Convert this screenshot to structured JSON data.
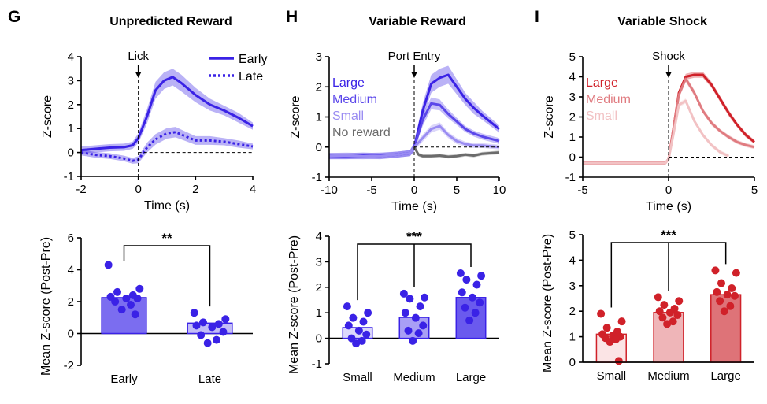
{
  "chart_data": [
    {
      "id": "G",
      "type": "line",
      "letter": "G",
      "title": "Unpredicted Reward",
      "xlabel": "Time (s)",
      "ylabel": "Z-score",
      "xlim": [
        -2,
        4
      ],
      "ylim": [
        -1,
        4
      ],
      "xticks": [
        -2,
        0,
        2,
        4
      ],
      "yticks": [
        -1,
        0,
        1,
        2,
        3,
        4
      ],
      "event": {
        "label": "Lick",
        "x": 0
      },
      "baseline": 0,
      "legend": {
        "position": "top-right",
        "style": "line"
      },
      "series": [
        {
          "name": "Early",
          "color": "#3a22e6",
          "dash": false,
          "x": [
            -2,
            -1.5,
            -1,
            -0.5,
            -0.2,
            0,
            0.3,
            0.6,
            0.9,
            1.2,
            1.5,
            2,
            2.5,
            3,
            3.5,
            4
          ],
          "y": [
            0.1,
            0.15,
            0.2,
            0.22,
            0.3,
            0.6,
            1.5,
            2.6,
            3.0,
            3.15,
            2.9,
            2.4,
            2.0,
            1.75,
            1.45,
            1.1
          ],
          "sem": [
            0.15,
            0.15,
            0.15,
            0.15,
            0.15,
            0.2,
            0.3,
            0.35,
            0.35,
            0.35,
            0.35,
            0.3,
            0.25,
            0.2,
            0.2,
            0.15
          ]
        },
        {
          "name": "Late",
          "color": "#3a22e6",
          "dash": true,
          "x": [
            -2,
            -1.5,
            -1,
            -0.5,
            -0.2,
            0,
            0.3,
            0.6,
            1,
            1.3,
            1.6,
            2,
            2.5,
            3,
            3.5,
            4
          ],
          "y": [
            0.0,
            -0.1,
            -0.15,
            -0.25,
            -0.35,
            -0.3,
            0.2,
            0.55,
            0.8,
            0.85,
            0.7,
            0.5,
            0.5,
            0.45,
            0.35,
            0.25
          ],
          "sem": [
            0.12,
            0.12,
            0.12,
            0.12,
            0.12,
            0.15,
            0.2,
            0.22,
            0.22,
            0.22,
            0.2,
            0.18,
            0.18,
            0.15,
            0.15,
            0.12
          ]
        }
      ]
    },
    {
      "id": "H",
      "type": "line",
      "letter": "H",
      "title": "Variable Reward",
      "xlabel": "Time (s)",
      "ylabel": "Z-score",
      "xlim": [
        -10,
        10
      ],
      "ylim": [
        -1,
        3
      ],
      "xticks": [
        -10,
        -5,
        0,
        5,
        10
      ],
      "yticks": [
        -1,
        0,
        1,
        2,
        3
      ],
      "event": {
        "label": "Port Entry",
        "x": 0
      },
      "baseline": 0,
      "legend": {
        "position": "top-left",
        "style": "text"
      },
      "series": [
        {
          "name": "Large",
          "color": "#3a22e6",
          "x": [
            -10,
            -8,
            -6,
            -4,
            -2,
            -0.5,
            0,
            1,
            2,
            3,
            4,
            5,
            6,
            7,
            8,
            10
          ],
          "y": [
            -0.3,
            -0.3,
            -0.28,
            -0.3,
            -0.25,
            -0.2,
            0.0,
            1.2,
            2.1,
            2.3,
            2.4,
            2.0,
            1.6,
            1.3,
            1.05,
            0.6
          ],
          "sem": [
            0.1,
            0.1,
            0.1,
            0.1,
            0.1,
            0.1,
            0.15,
            0.25,
            0.3,
            0.3,
            0.3,
            0.25,
            0.2,
            0.2,
            0.15,
            0.12
          ]
        },
        {
          "name": "Medium",
          "color": "#5a46ea",
          "x": [
            -10,
            -8,
            -6,
            -4,
            -2,
            -0.5,
            0,
            1,
            2,
            3,
            4,
            5,
            6,
            7,
            8,
            10
          ],
          "y": [
            -0.3,
            -0.3,
            -0.3,
            -0.28,
            -0.25,
            -0.2,
            0.0,
            0.9,
            1.45,
            1.4,
            1.1,
            0.85,
            0.6,
            0.45,
            0.35,
            0.2
          ],
          "sem": [
            0.1,
            0.1,
            0.1,
            0.1,
            0.1,
            0.1,
            0.12,
            0.2,
            0.2,
            0.18,
            0.15,
            0.12,
            0.1,
            0.1,
            0.1,
            0.1
          ]
        },
        {
          "name": "Small",
          "color": "#9a8cf2",
          "x": [
            -10,
            -8,
            -6,
            -4,
            -2,
            -0.5,
            0,
            1,
            2,
            3,
            4,
            5,
            6,
            7,
            8,
            10
          ],
          "y": [
            -0.3,
            -0.28,
            -0.3,
            -0.3,
            -0.25,
            -0.2,
            0.0,
            0.3,
            0.6,
            0.7,
            0.4,
            0.2,
            0.1,
            0.05,
            0.05,
            0.0
          ],
          "sem": [
            0.1,
            0.1,
            0.1,
            0.1,
            0.1,
            0.1,
            0.1,
            0.12,
            0.12,
            0.12,
            0.1,
            0.1,
            0.08,
            0.08,
            0.08,
            0.08
          ]
        },
        {
          "name": "No reward",
          "color": "#6b6b6b",
          "x": [
            0,
            0.5,
            1,
            2,
            3,
            4,
            5,
            6,
            7,
            8,
            9,
            10
          ],
          "y": [
            0.0,
            -0.25,
            -0.3,
            -0.3,
            -0.28,
            -0.32,
            -0.3,
            -0.25,
            -0.28,
            -0.22,
            -0.2,
            -0.18
          ],
          "sem": [
            0.05,
            0.06,
            0.06,
            0.06,
            0.06,
            0.06,
            0.06,
            0.06,
            0.06,
            0.06,
            0.06,
            0.06
          ]
        }
      ]
    },
    {
      "id": "I",
      "type": "line",
      "letter": "I",
      "title": "Variable Shock",
      "xlabel": "Time (s)",
      "ylabel": "Z-score",
      "xlim": [
        -5,
        5
      ],
      "ylim": [
        -1,
        5
      ],
      "xticks": [
        -5,
        0,
        5
      ],
      "yticks": [
        -1,
        0,
        1,
        2,
        3,
        4,
        5
      ],
      "event": {
        "label": "Shock",
        "x": 0
      },
      "baseline": 0,
      "legend": {
        "position": "top-left",
        "style": "text"
      },
      "series": [
        {
          "name": "Large",
          "color": "#d02129",
          "x": [
            -5,
            -4,
            -3,
            -2,
            -1,
            -0.2,
            0,
            0.3,
            0.6,
            1,
            1.5,
            2,
            2.5,
            3,
            3.5,
            4,
            4.5,
            5
          ],
          "y": [
            -0.3,
            -0.3,
            -0.3,
            -0.3,
            -0.3,
            -0.3,
            -0.1,
            1.5,
            3.2,
            4.0,
            4.1,
            4.1,
            3.6,
            2.9,
            2.2,
            1.6,
            1.1,
            0.75
          ],
          "sem": [
            0.08,
            0.08,
            0.08,
            0.08,
            0.08,
            0.08,
            0.1,
            0.15,
            0.15,
            0.15,
            0.15,
            0.15,
            0.15,
            0.15,
            0.15,
            0.12,
            0.12,
            0.1
          ]
        },
        {
          "name": "Medium",
          "color": "#e07b80",
          "x": [
            -5,
            -4,
            -3,
            -2,
            -1,
            -0.2,
            0,
            0.3,
            0.6,
            1,
            1.5,
            2,
            2.5,
            3,
            3.5,
            4,
            4.5,
            5
          ],
          "y": [
            -0.3,
            -0.3,
            -0.3,
            -0.3,
            -0.3,
            -0.3,
            -0.1,
            1.5,
            3.1,
            3.9,
            3.2,
            2.3,
            1.7,
            1.3,
            1.0,
            0.75,
            0.6,
            0.5
          ],
          "sem": [
            0.08,
            0.08,
            0.08,
            0.08,
            0.08,
            0.08,
            0.1,
            0.15,
            0.15,
            0.15,
            0.15,
            0.12,
            0.12,
            0.1,
            0.1,
            0.1,
            0.1,
            0.1
          ]
        },
        {
          "name": "Small",
          "color": "#f2c2c4",
          "x": [
            -5,
            -4,
            -3,
            -2,
            -1,
            -0.2,
            0,
            0.3,
            0.6,
            1,
            1.5,
            2,
            2.5,
            3,
            3.5
          ],
          "y": [
            -0.3,
            -0.3,
            -0.3,
            -0.3,
            -0.3,
            -0.3,
            -0.1,
            1.2,
            2.6,
            2.8,
            1.8,
            1.1,
            0.6,
            0.25,
            0.05
          ],
          "sem": [
            0.08,
            0.08,
            0.08,
            0.08,
            0.08,
            0.08,
            0.1,
            0.12,
            0.12,
            0.12,
            0.12,
            0.1,
            0.1,
            0.1,
            0.1
          ]
        }
      ]
    },
    {
      "id": "G2",
      "type": "bar",
      "ylabel": "Mean Z-score (Post-Pre)",
      "ylim": [
        -2,
        6
      ],
      "yticks": [
        -2,
        0,
        2,
        4,
        6
      ],
      "categories": [
        "Early",
        "Late"
      ],
      "values": [
        2.25,
        0.65
      ],
      "fill_colors": [
        "#7b6df0",
        "#c3bdf7"
      ],
      "edge_colors": [
        "#3a22e6",
        "#3a22e6"
      ],
      "point_color": "#3a22e6",
      "points": [
        [
          4.3,
          2.8,
          2.6,
          2.4,
          2.3,
          2.2,
          2.2,
          2.0,
          1.8,
          1.5,
          1.2
        ],
        [
          1.3,
          0.9,
          0.7,
          0.6,
          0.5,
          0.4,
          0.1,
          -0.1,
          -0.4,
          -0.6
        ]
      ],
      "significance": {
        "label": "**",
        "from": 0,
        "to": 1
      }
    },
    {
      "id": "H2",
      "type": "bar",
      "ylabel": "Mean Z-score (Post-Pre)",
      "ylim": [
        -1,
        4
      ],
      "yticks": [
        -1,
        0,
        1,
        2,
        3,
        4
      ],
      "categories": [
        "Small",
        "Medium",
        "Large"
      ],
      "values": [
        0.42,
        0.82,
        1.6
      ],
      "fill_colors": [
        "#dcd8fb",
        "#a99ff5",
        "#6a5aee"
      ],
      "edge_colors": [
        "#3a22e6",
        "#3a22e6",
        "#3a22e6"
      ],
      "point_color": "#3a22e6",
      "points": [
        [
          1.25,
          1.0,
          0.8,
          0.65,
          0.5,
          0.3,
          0.15,
          0.0,
          -0.1,
          -0.2
        ],
        [
          1.75,
          1.6,
          1.55,
          1.25,
          1.0,
          0.8,
          0.5,
          0.3,
          0.2,
          -0.1
        ],
        [
          2.55,
          2.45,
          2.3,
          2.1,
          1.8,
          1.6,
          1.4,
          1.2,
          1.0,
          0.7
        ]
      ],
      "significance": {
        "label": "***",
        "from": 0,
        "to": 2
      }
    },
    {
      "id": "I2",
      "type": "bar",
      "ylabel": "Mean Z-score (Post-Pre)",
      "ylim": [
        0,
        5
      ],
      "yticks": [
        0,
        1,
        2,
        3,
        4,
        5
      ],
      "categories": [
        "Small",
        "Medium",
        "Large"
      ],
      "values": [
        1.1,
        1.95,
        2.65
      ],
      "fill_colors": [
        "#fbe4e5",
        "#efb5b8",
        "#de7378"
      ],
      "edge_colors": [
        "#d02129",
        "#d02129",
        "#d02129"
      ],
      "point_color": "#d02129",
      "points": [
        [
          1.9,
          1.6,
          1.35,
          1.2,
          1.1,
          1.05,
          1.0,
          0.95,
          0.9,
          0.8,
          0.05
        ],
        [
          2.55,
          2.4,
          2.25,
          2.1,
          2.0,
          1.95,
          1.85,
          1.75,
          1.6,
          1.5
        ],
        [
          3.6,
          3.5,
          3.1,
          2.9,
          2.75,
          2.65,
          2.6,
          2.4,
          2.2,
          2.0
        ]
      ],
      "significance": {
        "label": "***",
        "from": 0,
        "to": 2
      }
    }
  ]
}
